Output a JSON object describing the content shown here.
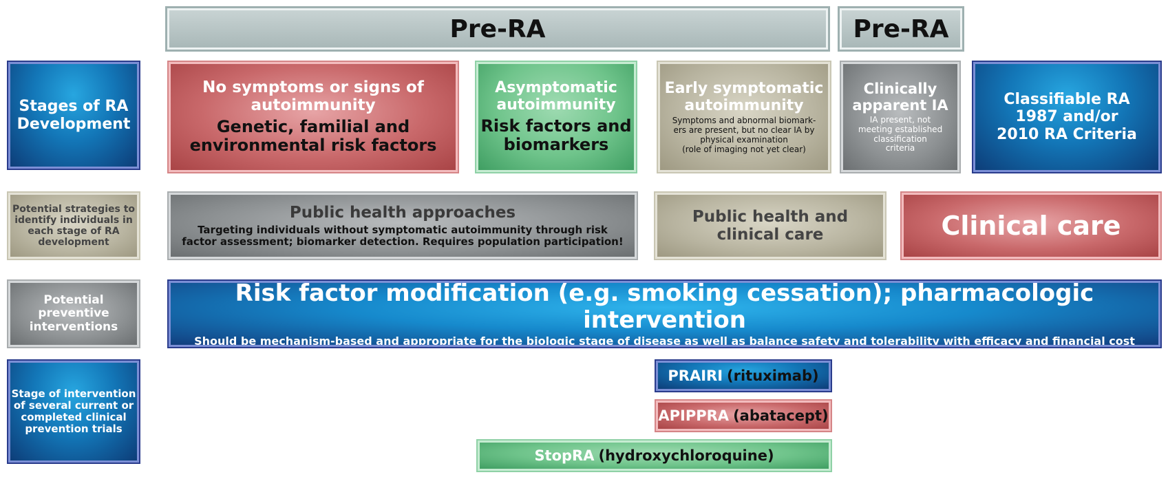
{
  "header": {
    "pre_ra_main": "Pre-RA",
    "pre_ra_short": "Pre-RA"
  },
  "row_labels": {
    "stages": [
      "Stages of RA",
      "Development"
    ],
    "strategies": [
      "Potential strategies to",
      "identify individuals in",
      "each stage of RA",
      "development"
    ],
    "interventions": [
      "Potential",
      "preventive",
      "interventions"
    ],
    "trials": [
      "Stage of intervention",
      "of several current or",
      "completed clinical",
      "prevention trials"
    ]
  },
  "stages": {
    "no_symptoms": {
      "title_lines": [
        "No symptoms or signs of",
        "autoimmunity"
      ],
      "body_lines": [
        "Genetic, familial and",
        "environmental risk factors"
      ]
    },
    "asymptomatic": {
      "title_lines": [
        "Asymptomatic",
        "autoimmunity"
      ],
      "body_lines": [
        "Risk factors and",
        "biomarkers"
      ]
    },
    "early_symptomatic": {
      "title_lines": [
        "Early symptomatic",
        "autoimmunity"
      ],
      "body_lines": [
        "Symptoms and abnormal biomark-",
        "ers are present, but no clear IA by",
        "physical examination",
        "(role of imaging not yet clear)"
      ]
    },
    "clinically_apparent": {
      "title_lines": [
        "Clinically",
        "apparent IA"
      ],
      "body_lines": [
        "IA present, not",
        "meeting established",
        "classification",
        "criteria"
      ]
    },
    "classifiable": {
      "title_lines": [
        "Classifiable RA",
        "1987 and/or",
        "2010 RA Criteria"
      ]
    }
  },
  "strategies": {
    "public_health": {
      "title": "Public health approaches",
      "body_lines": [
        "Targeting individuals without symptomatic autoimmunity through risk",
        "factor assessment; biomarker detection. Requires population participation!"
      ]
    },
    "public_clinical": {
      "title_lines": [
        "Public health and",
        "clinical care"
      ]
    },
    "clinical_care": {
      "title": "Clinical care"
    }
  },
  "interventions": {
    "title": "Risk factor modification (e.g. smoking cessation); pharmacologic intervention",
    "subtitle": "Should be mechanism-based and appropriate for the biologic stage of disease as well as balance safety and tolerability with efficacy and financial cost"
  },
  "trials": [
    {
      "name": "PRAIRI",
      "drug": "(rituximab)",
      "color": "#1577b8"
    },
    {
      "name": "APIPPRA",
      "drug": "(abatacept)",
      "color": "#c9696b"
    },
    {
      "name": "StopRA",
      "drug": "(hydroxychloroquine)",
      "color": "#6fc48b"
    }
  ]
}
